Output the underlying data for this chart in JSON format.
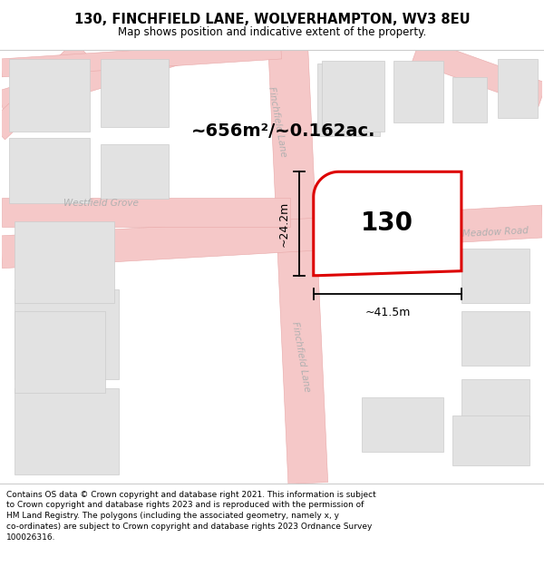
{
  "title": "130, FINCHFIELD LANE, WOLVERHAMPTON, WV3 8EU",
  "subtitle": "Map shows position and indicative extent of the property.",
  "footer_text": "Contains OS data © Crown copyright and database right 2021. This information is subject to Crown copyright and database rights 2023 and is reproduced with the permission of HM Land Registry. The polygons (including the associated geometry, namely x, y co-ordinates) are subject to Crown copyright and database rights 2023 Ordnance Survey 100026316.",
  "area_label": "~656m²/~0.162ac.",
  "property_number": "130",
  "dim_width": "~41.5m",
  "dim_height": "~24.2m",
  "road_fill": "#f5c8c8",
  "road_edge": "#e8a8a8",
  "road_text_color": "#b0b0b0",
  "block_fill": "#e2e2e2",
  "block_edge": "#cccccc",
  "map_bg": "#f8f8f8",
  "outline_color": "#dd0000",
  "title_fontsize": 10.5,
  "subtitle_fontsize": 8.5,
  "footer_fontsize": 6.5,
  "area_fontsize": 14,
  "number_fontsize": 20,
  "dim_fontsize": 9,
  "road_label_fontsize": 7.5
}
